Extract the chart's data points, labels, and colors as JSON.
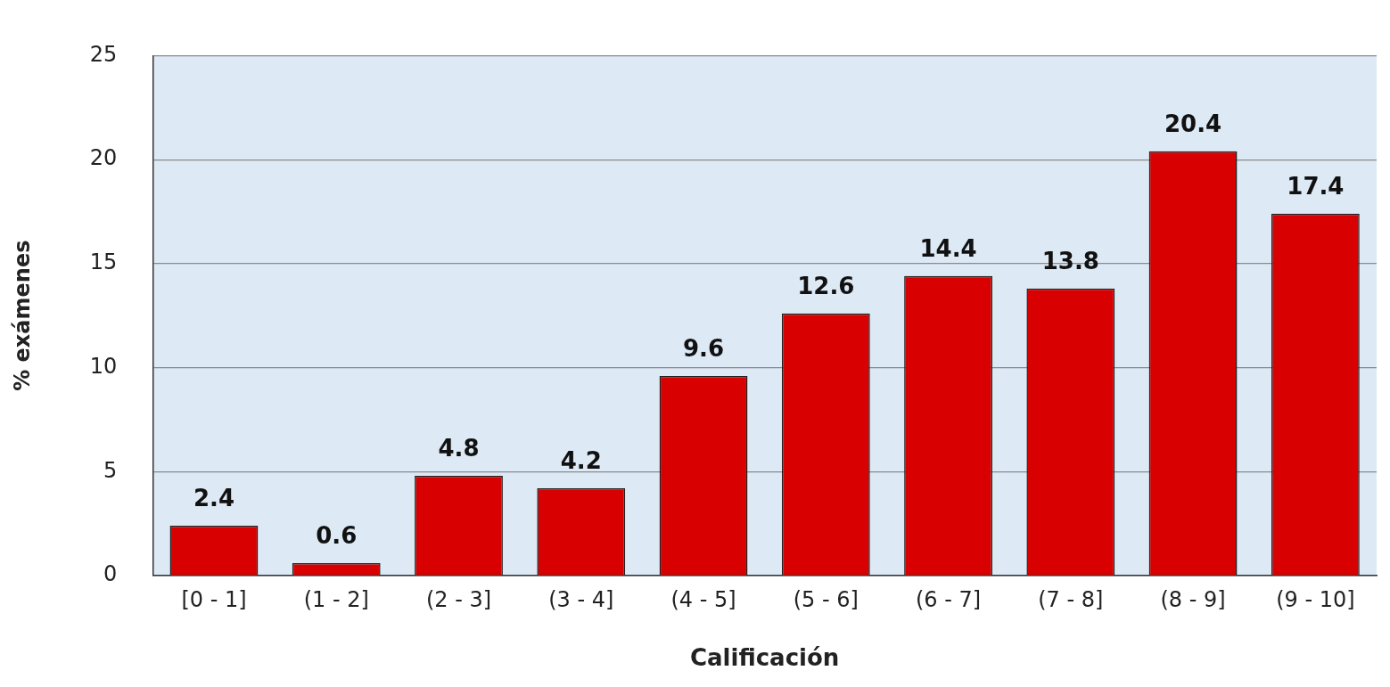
{
  "chart_data": {
    "type": "bar",
    "xlabel": "Calificación",
    "ylabel": "% exámenes",
    "categories": [
      "[0 - 1]",
      "(1 - 2]",
      "(2 - 3]",
      "(3 - 4]",
      "(4 - 5]",
      "(5 - 6]",
      "(6 - 7]",
      "(7 - 8]",
      "(8 - 9]",
      "(9 - 10]"
    ],
    "values": [
      2.4,
      0.6,
      4.8,
      4.2,
      9.6,
      12.6,
      14.4,
      13.8,
      20.4,
      17.4
    ],
    "color": "#d80000",
    "ylim": [
      0,
      25
    ],
    "yticks": [
      0,
      5,
      10,
      15,
      20,
      25
    ],
    "grid": "y",
    "data_labels": true
  }
}
